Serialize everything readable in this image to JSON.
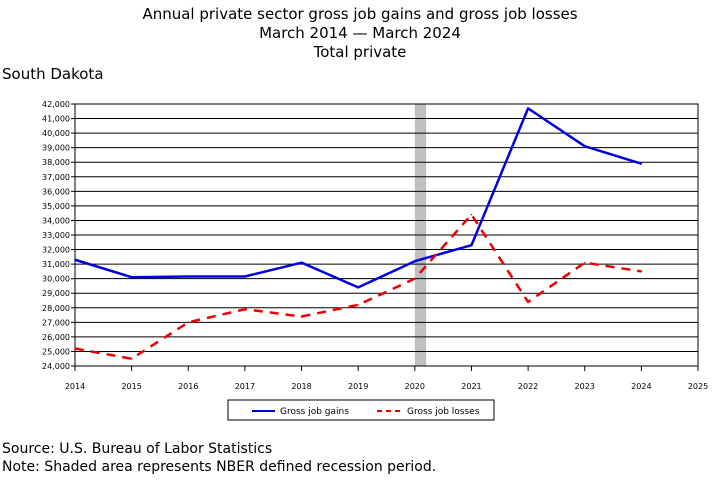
{
  "header": {
    "title_line1": "Annual private sector gross job gains and gross job losses",
    "title_line2": "March 2014 — March 2024",
    "title_line3": "Total private",
    "state": "South Dakota"
  },
  "footer": {
    "source": "Source: U.S. Bureau of Labor Statistics",
    "note": "Note: Shaded area represents NBER defined recession period."
  },
  "chart_data": {
    "type": "line",
    "title": "Annual private sector gross job gains and gross job losses",
    "subtitle": "March 2014 — March 2024",
    "x": [
      2014,
      2015,
      2016,
      2017,
      2018,
      2019,
      2020,
      2021,
      2022,
      2023,
      2024
    ],
    "xlim": [
      2014,
      2025
    ],
    "x_ticks": [
      "2014",
      "2015",
      "2016",
      "2017",
      "2018",
      "2019",
      "2020",
      "2021",
      "2022",
      "2023",
      "2024",
      "2025"
    ],
    "ylim": [
      24000,
      42000
    ],
    "y_ticks": [
      "24,000",
      "25,000",
      "26,000",
      "27,000",
      "28,000",
      "29,000",
      "30,000",
      "31,000",
      "32,000",
      "33,000",
      "34,000",
      "35,000",
      "36,000",
      "37,000",
      "38,000",
      "39,000",
      "40,000",
      "41,000",
      "42,000"
    ],
    "y_tick_values": [
      24000,
      25000,
      26000,
      27000,
      28000,
      29000,
      30000,
      31000,
      32000,
      33000,
      34000,
      35000,
      36000,
      37000,
      38000,
      39000,
      40000,
      41000,
      42000
    ],
    "grid": true,
    "recession": [
      2020.0,
      2020.2
    ],
    "legend_position": "bottom-center",
    "series": [
      {
        "name": "Gross job gains",
        "color": "#0000dd",
        "dash": "solid",
        "values": [
          31300,
          30100,
          30150,
          30150,
          31100,
          29400,
          31200,
          32300,
          41700,
          39100,
          37900
        ]
      },
      {
        "name": "Gross job losses",
        "color": "#ee0000",
        "dash": "dashed",
        "values": [
          25200,
          24500,
          27000,
          27900,
          27400,
          28200,
          30000,
          34400,
          28400,
          31100,
          30500
        ]
      }
    ]
  }
}
